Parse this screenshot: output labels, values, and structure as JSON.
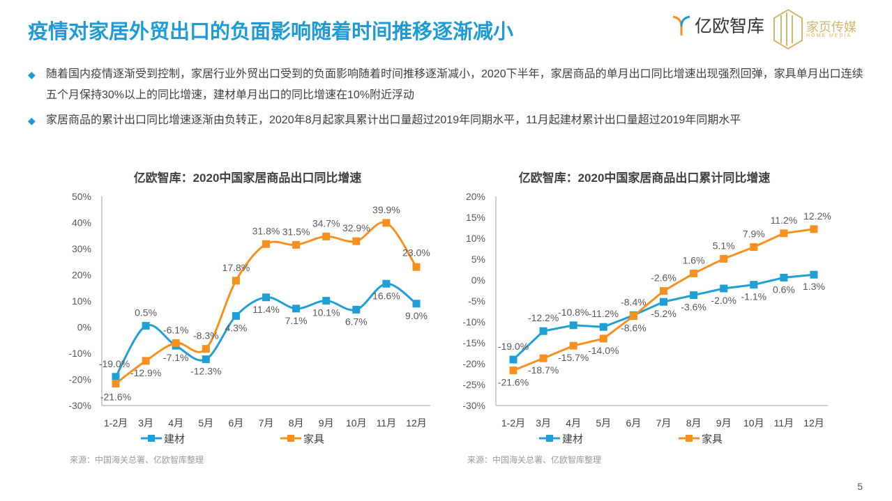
{
  "header": {
    "title": "疫情对家居外贸出口的负面影响随着时间推移逐渐减小",
    "logo_yiou": "亿欧智库",
    "logo_jiaye": "家页传媒",
    "logo_jiaye_sub": "HOME MEDIA"
  },
  "bullets": [
    "随着国内疫情逐渐受到控制，家居行业外贸出口受到的负面影响随着时间推移逐渐减小，2020下半年，家居商品的单月出口同比增速出现强烈回弹，家具单月出口连续五个月保持30%以上的同比增速，建材单月出口的同比增速在10%附近浮动",
    "家居商品的累计出口同比增速逐渐由负转正，2020年8月起家具累计出口量超过2019年同期水平，11月起建材累计出口量超过2019年同期水平"
  ],
  "colors": {
    "accent": "#1e9bd7",
    "jiancai": "#1f9fd5",
    "jiaju": "#f7901e"
  },
  "page_number": "5",
  "chart_data": [
    {
      "type": "line",
      "title": "亿欧智库：2020中国家居商品出口同比增速",
      "source": "来源：中国海关总署、亿欧智库整理",
      "categories": [
        "1-2月",
        "3月",
        "4月",
        "5月",
        "6月",
        "7月",
        "8月",
        "9月",
        "10月",
        "11月",
        "12月"
      ],
      "ylim": [
        -30,
        50
      ],
      "ytick_step": 10,
      "smooth": true,
      "legend": "bottom",
      "grid": false,
      "series": [
        {
          "name": "建材",
          "values": [
            -19.0,
            0.5,
            -7.1,
            -12.3,
            4.3,
            11.4,
            7.1,
            10.1,
            6.7,
            16.6,
            9.0
          ]
        },
        {
          "name": "家具",
          "values": [
            -21.6,
            -12.9,
            -6.1,
            -8.3,
            17.8,
            31.8,
            31.5,
            34.7,
            32.9,
            39.9,
            23.0
          ]
        }
      ]
    },
    {
      "type": "line",
      "title": "亿欧智库：2020中国家居商品出口累计同比增速",
      "source": "来源：中国海关总署、亿欧智库整理",
      "categories": [
        "1-2月",
        "3月",
        "4月",
        "5月",
        "6月",
        "7月",
        "8月",
        "9月",
        "10月",
        "11月",
        "12月"
      ],
      "ylim": [
        -30,
        20
      ],
      "ytick_step": 5,
      "smooth": false,
      "legend": "bottom",
      "grid": false,
      "series": [
        {
          "name": "建材",
          "values": [
            -19.0,
            -12.2,
            -10.8,
            -11.2,
            -8.4,
            -5.2,
            -3.6,
            -2.0,
            -1.1,
            0.6,
            1.3
          ]
        },
        {
          "name": "家具",
          "values": [
            -21.6,
            -18.7,
            -15.7,
            -14.0,
            -8.6,
            -2.6,
            1.6,
            5.1,
            7.9,
            11.2,
            12.2
          ]
        }
      ]
    }
  ]
}
